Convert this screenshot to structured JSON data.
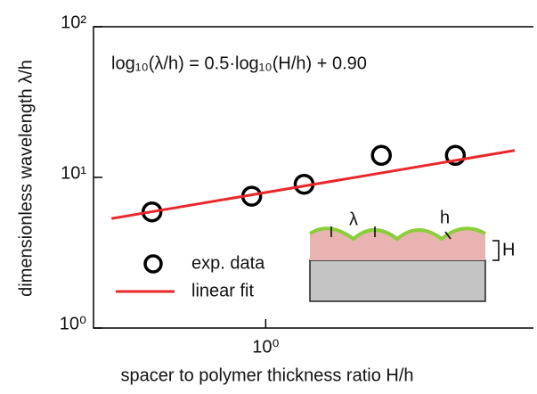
{
  "chart_data": {
    "type": "scatter",
    "y_label": "dimensionless wavelength λ/h",
    "x_label": "spacer to polymer thickness ratio H/h",
    "annotation": "log₁₀(λ/h) = 0.5·log₁₀(H/h) + 0.90",
    "inset_labels": [
      "λ",
      "h",
      "H"
    ],
    "log_x": true,
    "log_y": true,
    "xlim": [
      0.41,
      4.0
    ],
    "ylim": [
      1,
      100
    ],
    "xticks": [
      {
        "value": 1,
        "label": "10⁰"
      }
    ],
    "yticks": [
      {
        "value": 1,
        "label": "10⁰"
      },
      {
        "value": 10,
        "label": "10¹"
      },
      {
        "value": 100,
        "label": "10²"
      }
    ],
    "series": [
      {
        "name": "exp. data",
        "mode": "markers",
        "color": "#000000",
        "x": [
          0.555,
          0.93,
          1.22,
          1.82,
          2.67
        ],
        "values": [
          5.9,
          7.5,
          9.0,
          14.0,
          14.0
        ]
      },
      {
        "name": "linear fit",
        "mode": "line",
        "color": "#e8282b",
        "x": [
          0.45,
          3.63
        ],
        "values": [
          5.33,
          15.1
        ]
      }
    ]
  }
}
